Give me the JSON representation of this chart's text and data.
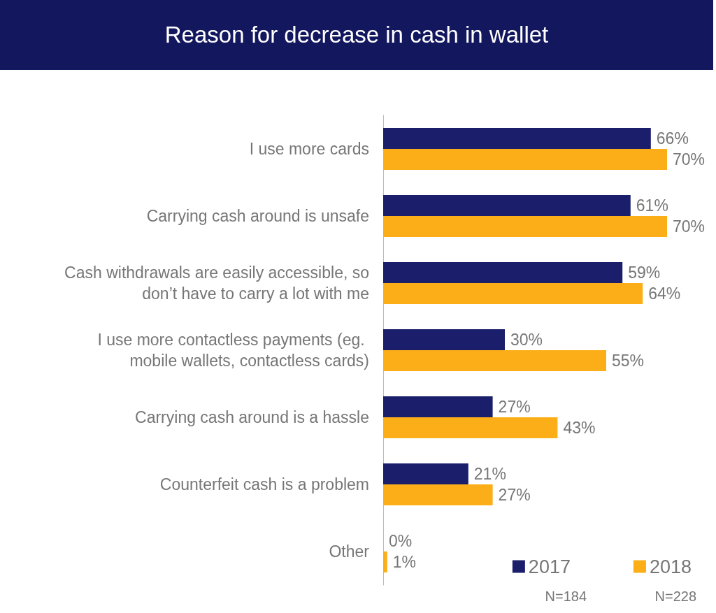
{
  "chart_data": {
    "type": "bar",
    "orientation": "horizontal",
    "title": "Reason for decrease in cash in wallet",
    "categories": [
      "I use more cards",
      "Carrying cash around is unsafe",
      "Cash withdrawals are easily accessible, so don’t have to carry a lot with me",
      "I use more contactless payments (eg. mobile wallets, contactless cards)",
      "Carrying cash around is a hassle",
      "Counterfeit cash is a problem",
      "Other"
    ],
    "series": [
      {
        "name": "2017",
        "color": "#1b1f6b",
        "values": [
          66,
          61,
          59,
          30,
          27,
          21,
          0
        ],
        "value_labels": [
          "66%",
          "61%",
          "59%",
          "30%",
          "27%",
          "21%",
          "0%"
        ]
      },
      {
        "name": "2018",
        "color": "#fbae17",
        "values": [
          70,
          70,
          64,
          55,
          43,
          27,
          1
        ],
        "value_labels": [
          "70%",
          "70%",
          "64%",
          "55%",
          "43%",
          "27%",
          "1%"
        ]
      }
    ],
    "tick_labels": "y",
    "grid": false,
    "legend": "bottom right",
    "annotations": [
      "N=184",
      "N=228"
    ]
  }
}
